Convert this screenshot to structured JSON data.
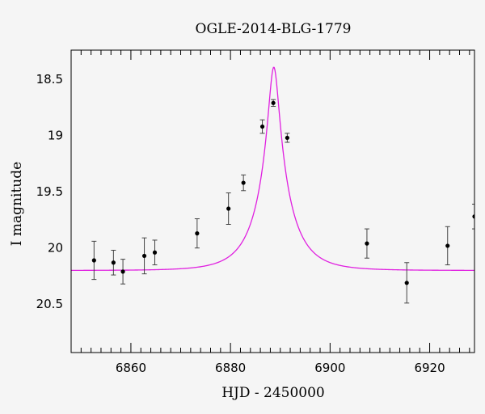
{
  "chart_data": {
    "type": "scatter",
    "title": "OGLE-2014-BLG-1779",
    "xlabel": "HJD - 2450000",
    "ylabel": "I magnitude",
    "xlim": [
      6848,
      6929
    ],
    "ylim": [
      20.93,
      18.24
    ],
    "y_inverted": true,
    "x_ticks": [
      6860,
      6880,
      6900,
      6920
    ],
    "x_tick_labels": [
      "6860",
      "6880",
      "6900",
      "6920"
    ],
    "y_ticks": [
      18.5,
      19,
      19.5,
      20,
      20.5
    ],
    "y_tick_labels": [
      "18.5",
      "19",
      "19.5",
      "20",
      "20.5"
    ],
    "grid": false,
    "colors": {
      "model": "#e020e0",
      "points": "#000000",
      "background": "#f5f5f5"
    },
    "series": [
      {
        "kind": "points_with_errorbars",
        "points": [
          {
            "x": 6852.6,
            "y": 20.11,
            "err": 0.17
          },
          {
            "x": 6856.5,
            "y": 20.13,
            "err": 0.11
          },
          {
            "x": 6858.4,
            "y": 20.21,
            "err": 0.11
          },
          {
            "x": 6862.7,
            "y": 20.07,
            "err": 0.16
          },
          {
            "x": 6864.8,
            "y": 20.04,
            "err": 0.11
          },
          {
            "x": 6873.3,
            "y": 19.87,
            "err": 0.13
          },
          {
            "x": 6879.6,
            "y": 19.65,
            "err": 0.14
          },
          {
            "x": 6882.6,
            "y": 19.42,
            "err": 0.07
          },
          {
            "x": 6886.4,
            "y": 18.92,
            "err": 0.06
          },
          {
            "x": 6888.6,
            "y": 18.71,
            "err": 0.03
          },
          {
            "x": 6891.4,
            "y": 19.02,
            "err": 0.04
          },
          {
            "x": 6907.4,
            "y": 19.96,
            "err": 0.13
          },
          {
            "x": 6915.4,
            "y": 20.31,
            "err": 0.18
          },
          {
            "x": 6923.6,
            "y": 19.98,
            "err": 0.17
          },
          {
            "x": 6929.0,
            "y": 19.72,
            "err": 0.11
          }
        ]
      },
      {
        "kind": "model_curve",
        "model": {
          "t0": 6888.7,
          "tE": 6.5,
          "u0": 0.15,
          "baseline_mag": 20.2,
          "fs": 0.75
        }
      }
    ]
  }
}
